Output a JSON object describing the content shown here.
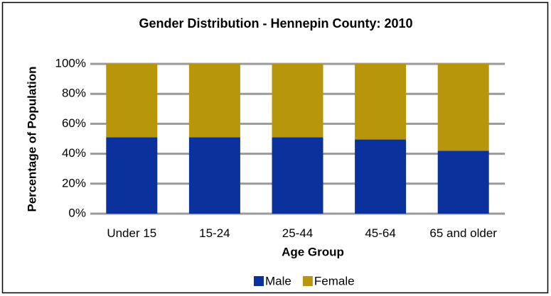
{
  "chart_data": {
    "type": "stacked_bar",
    "title": "Gender Distribution - Hennepin County: 2010",
    "xlabel": "Age Group",
    "ylabel": "Percentage of Population",
    "categories": [
      "Under 15",
      "15-24",
      "25-44",
      "45-64",
      "65 and older"
    ],
    "series": [
      {
        "name": "Male",
        "color": "#0b329c",
        "values": [
          51,
          51,
          51,
          49.5,
          42
        ]
      },
      {
        "name": "Female",
        "color": "#b8960c",
        "values": [
          49,
          49,
          49,
          50.5,
          58
        ]
      }
    ],
    "ylim": [
      0,
      100
    ],
    "yticks": [
      {
        "value": 0,
        "label": "0%"
      },
      {
        "value": 20,
        "label": "20%"
      },
      {
        "value": 40,
        "label": "40%"
      },
      {
        "value": 60,
        "label": "60%"
      },
      {
        "value": 80,
        "label": "80%"
      },
      {
        "value": 100,
        "label": "100%"
      }
    ],
    "grid": true,
    "legend": "bottom"
  }
}
